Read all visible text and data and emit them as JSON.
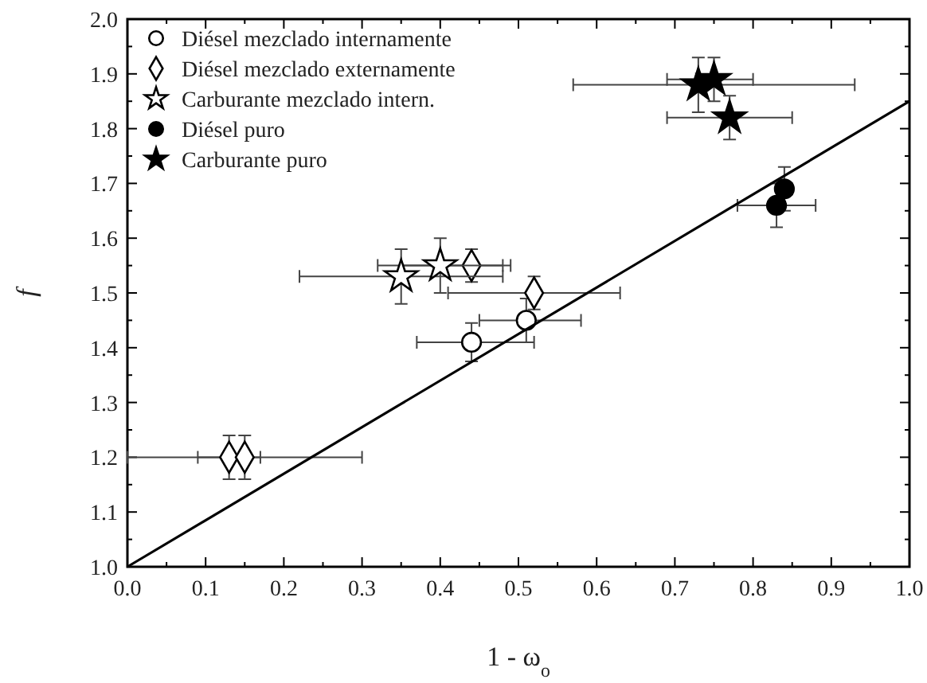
{
  "chart_data": {
    "type": "scatter",
    "xlabel": "1 - ω$_{o}$",
    "ylabel": "f",
    "xlim": [
      0,
      1
    ],
    "ylim": [
      1,
      2
    ],
    "xticks": [
      {
        "value": 0,
        "label": "0.0"
      },
      {
        "value": 0.05,
        "label": null
      },
      0.1,
      {
        "value": 0.15,
        "label": null
      },
      0.2,
      {
        "value": 0.25,
        "label": null
      },
      0.3,
      {
        "value": 0.35,
        "label": null
      },
      0.4,
      {
        "value": 0.45,
        "label": null
      },
      0.5,
      {
        "value": 0.55,
        "label": null
      },
      0.6,
      {
        "value": 0.65,
        "label": null
      },
      0.7,
      {
        "value": 0.75,
        "label": null
      },
      0.8,
      {
        "value": 0.85,
        "label": null
      },
      0.9,
      {
        "value": 0.95,
        "label": null
      },
      {
        "value": 1,
        "label": "1.0"
      }
    ],
    "yticks": [
      {
        "value": 1,
        "label": "1.0"
      },
      {
        "value": 1.05,
        "label": null
      },
      1.1,
      {
        "value": 1.15,
        "label": null
      },
      1.2,
      {
        "value": 1.25,
        "label": null
      },
      1.3,
      {
        "value": 1.35,
        "label": null
      },
      1.4,
      {
        "value": 1.45,
        "label": null
      },
      1.5,
      {
        "value": 1.55,
        "label": null
      },
      1.6,
      {
        "value": 1.65,
        "label": null
      },
      1.7,
      {
        "value": 1.75,
        "label": null
      },
      1.8,
      {
        "value": 1.85,
        "label": null
      },
      1.9,
      {
        "value": 1.95,
        "label": null
      },
      {
        "value": 2,
        "label": "2.0"
      }
    ],
    "grid": false,
    "legend": "top left",
    "series": [
      {
        "name": "Diésel mezclado internamente",
        "color": "#ffffff",
        "marker": "circle",
        "x": [
          0.44,
          0.51
        ],
        "values": [
          1.41,
          1.45
        ],
        "errors": [
          0.035,
          0.04
        ],
        "xerrors": [
          [
            0.37,
            0.52
          ],
          [
            0.45,
            0.58
          ]
        ]
      },
      {
        "name": "Diésel mezclado externamente",
        "color": "#ffffff",
        "marker": "diamond",
        "x": [
          0.13,
          0.15,
          0.44,
          0.52
        ],
        "values": [
          1.2,
          1.2,
          1.55,
          1.5
        ],
        "errors": [
          0.04,
          0.04,
          0.03,
          0.03
        ],
        "xerrors": [
          [
            0,
            0.17
          ],
          [
            0.09,
            0.3
          ],
          [
            0.35,
            0.48
          ],
          [
            0.41,
            0.63
          ]
        ]
      },
      {
        "name": "Carburante mezclado intern.",
        "color": "#ffffff",
        "marker": "star",
        "x": [
          0.35,
          0.4
        ],
        "values": [
          1.53,
          1.55
        ],
        "errors": [
          0.05,
          0.05
        ],
        "xerrors": [
          [
            0.22,
            0.48
          ],
          [
            0.32,
            0.49
          ]
        ]
      },
      {
        "name": "Diésel puro",
        "color": "#000000",
        "marker": "circle",
        "x": [
          0.83,
          0.84
        ],
        "values": [
          1.66,
          1.69
        ],
        "errors": [
          0.04,
          0.04
        ],
        "xerrors": [
          [
            0.78,
            0.88
          ],
          [
            0.83,
            0.85
          ]
        ]
      },
      {
        "name": "Carburante puro",
        "color": "#000000",
        "marker": "star",
        "x": [
          0.73,
          0.75,
          0.77
        ],
        "values": [
          1.88,
          1.89,
          1.82
        ],
        "errors": [
          0.05,
          0.04,
          0.04
        ],
        "xerrors": [
          [
            0.57,
            0.93
          ],
          [
            0.69,
            0.8
          ],
          [
            0.69,
            0.85
          ]
        ]
      },
      {
        "type": "line",
        "color": "#000000",
        "marker": "none",
        "line_style": "solid",
        "x": [
          0,
          1
        ],
        "values": [
          1,
          1.85
        ]
      }
    ]
  }
}
